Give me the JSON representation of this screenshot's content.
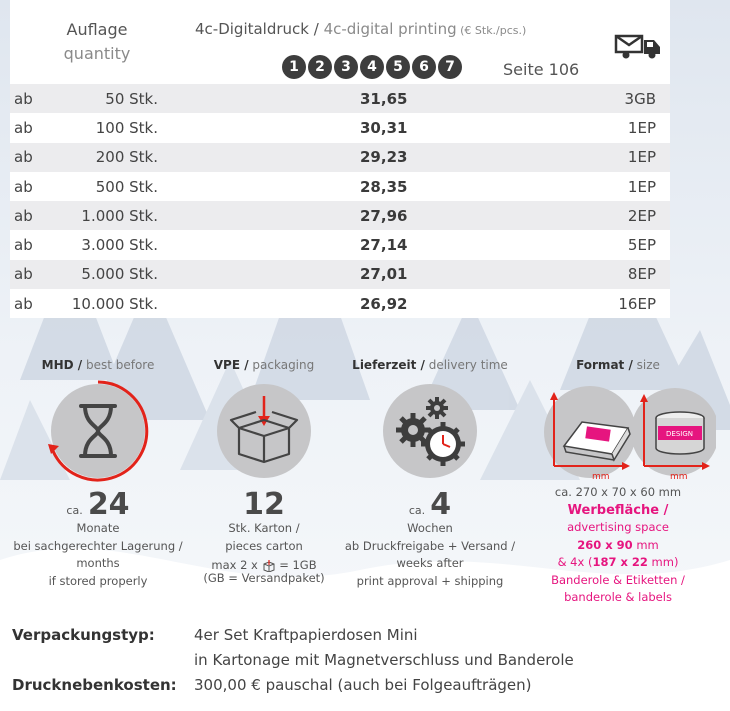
{
  "header": {
    "qty_de": "Auflage",
    "qty_en": "quantity",
    "price_de": "4c-Digitaldruck / ",
    "price_en": "4c-digital printing",
    "price_unit": " (€ Stk./pcs.)",
    "page_ref": "Seite 106",
    "options": [
      "1",
      "2",
      "3",
      "4",
      "5",
      "6",
      "7"
    ],
    "delivery_icon": "truck-parcel-icon"
  },
  "price_rows": [
    {
      "prefix": "ab",
      "qty": "50 Stk.",
      "price": "31,65",
      "delivery": "3GB"
    },
    {
      "prefix": "ab",
      "qty": "100 Stk.",
      "price": "30,31",
      "delivery": "1EP"
    },
    {
      "prefix": "ab",
      "qty": "200 Stk.",
      "price": "29,23",
      "delivery": "1EP"
    },
    {
      "prefix": "ab",
      "qty": "500 Stk.",
      "price": "28,35",
      "delivery": "1EP"
    },
    {
      "prefix": "ab",
      "qty": "1.000 Stk.",
      "price": "27,96",
      "delivery": "2EP"
    },
    {
      "prefix": "ab",
      "qty": "3.000 Stk.",
      "price": "27,14",
      "delivery": "5EP"
    },
    {
      "prefix": "ab",
      "qty": "5.000 Stk.",
      "price": "27,01",
      "delivery": "8EP"
    },
    {
      "prefix": "ab",
      "qty": "10.000 Stk.",
      "price": "26,92",
      "delivery": "16EP"
    }
  ],
  "info": {
    "mhd": {
      "title_de": "MHD /",
      "title_en": " best before",
      "icon": "hourglass-icon",
      "ca": "ca.",
      "value": "24",
      "unit": "Monate",
      "line1": "bei sachgerechter Lagerung /",
      "line2": "months",
      "line3": "if stored properly"
    },
    "vpe": {
      "title_de": "VPE /",
      "title_en": " packaging",
      "icon": "open-box-icon",
      "value": "12",
      "unit": "Stk. Karton /",
      "line1": "pieces carton",
      "line2": "max 2 x",
      "line2b": "= 1GB",
      "line3": "(GB = Versandpaket)"
    },
    "lieferzeit": {
      "title_de": "Lieferzeit /",
      "title_en": " delivery time",
      "icon": "gears-clock-icon",
      "ca": "ca.",
      "value": "4",
      "unit": "Wochen",
      "line1": "ab Druckfreigabe + Versand /",
      "line2": "weeks after",
      "line3": "print approval + shipping"
    },
    "format": {
      "title_de": "Format /",
      "title_en": " size",
      "icon": "product-dimensions-icon",
      "mm_label": "mm",
      "dims": "ca. 270 x 70 x 60 mm",
      "ad_de": "Werbefläche /",
      "ad_en": "advertising space",
      "ad_size": "260 x 90",
      "ad_unit": " mm",
      "ad2_pre": "& 4x (",
      "ad2_size": "187 x 22",
      "ad2_post": " mm)",
      "band_de": "Banderole & Etiketten /",
      "band_en": "banderole & labels",
      "design_label": "DESIGN"
    }
  },
  "footer": {
    "pack_label": "Verpackungstyp:",
    "pack_line1": "4er Set Kraftpapierdosen Mini",
    "pack_line2": "in Kartonage mit Magnetverschluss und Banderole",
    "cost_label": "Drucknebenkosten:",
    "cost_value": "300,00 € pauschal (auch bei Folgeaufträgen)"
  },
  "colors": {
    "accent_pink": "#e6157f",
    "accent_red": "#e2231a",
    "circle_grey": "#c6c6c8"
  }
}
